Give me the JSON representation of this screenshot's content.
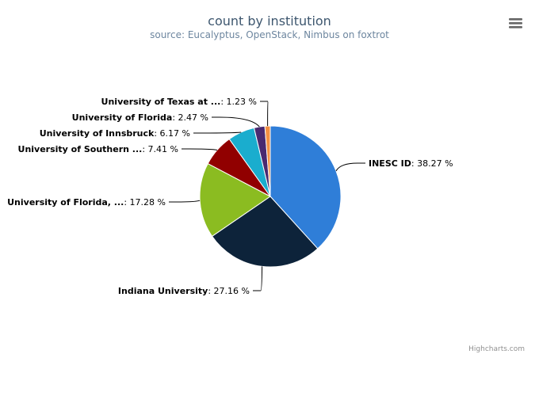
{
  "chart_data": {
    "type": "pie",
    "title": "count by institution",
    "subtitle": "source: Eucalyptus, OpenStack, Nimbus on foxtrot",
    "value_suffix": " %",
    "slices": [
      {
        "name": "INESC ID",
        "value": 38.27,
        "color": "#2F7ED8"
      },
      {
        "name": "Indiana University",
        "value": 27.16,
        "color": "#0D233A"
      },
      {
        "name": "University of Florida, ...",
        "value": 17.28,
        "color": "#8BBC21"
      },
      {
        "name": "University of Southern ...",
        "value": 7.41,
        "color": "#910000"
      },
      {
        "name": "University of Innsbruck",
        "value": 6.17,
        "color": "#1AADCE"
      },
      {
        "name": "University of Florida",
        "value": 2.47,
        "color": "#492970"
      },
      {
        "name": "University of Texas at ...",
        "value": 1.23,
        "color": "#F28F43"
      }
    ]
  },
  "credits": "Highcharts.com",
  "menu": {
    "icon": "menu-icon"
  }
}
